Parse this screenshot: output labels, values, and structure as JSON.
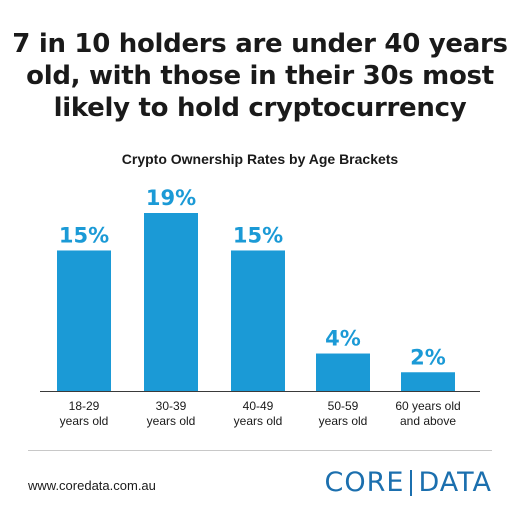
{
  "headline": {
    "line1": "7 in 10 holders are under 40 years",
    "line2": "old, with those in their 30s most",
    "line3": "likely to hold cryptocurrency"
  },
  "chart_data": {
    "type": "bar",
    "title": "Crypto Ownership Rates by Age Brackets",
    "categories": [
      [
        "18-29",
        "years old"
      ],
      [
        "30-39",
        "years old"
      ],
      [
        "40-49",
        "years old"
      ],
      [
        "50-59",
        "years old"
      ],
      [
        "60 years old",
        "and above"
      ]
    ],
    "values": [
      15,
      19,
      15,
      4,
      2
    ],
    "value_labels": [
      "15%",
      "19%",
      "15%",
      "4%",
      "2%"
    ],
    "ylim": [
      0,
      19
    ],
    "bar_color": "#1b9ad6",
    "grid": false,
    "legend": "none"
  },
  "footer": {
    "website": "www.coredata.com.au",
    "logo_left": "CORE",
    "logo_right": "DATA",
    "logo_color": "#1b6fae"
  }
}
